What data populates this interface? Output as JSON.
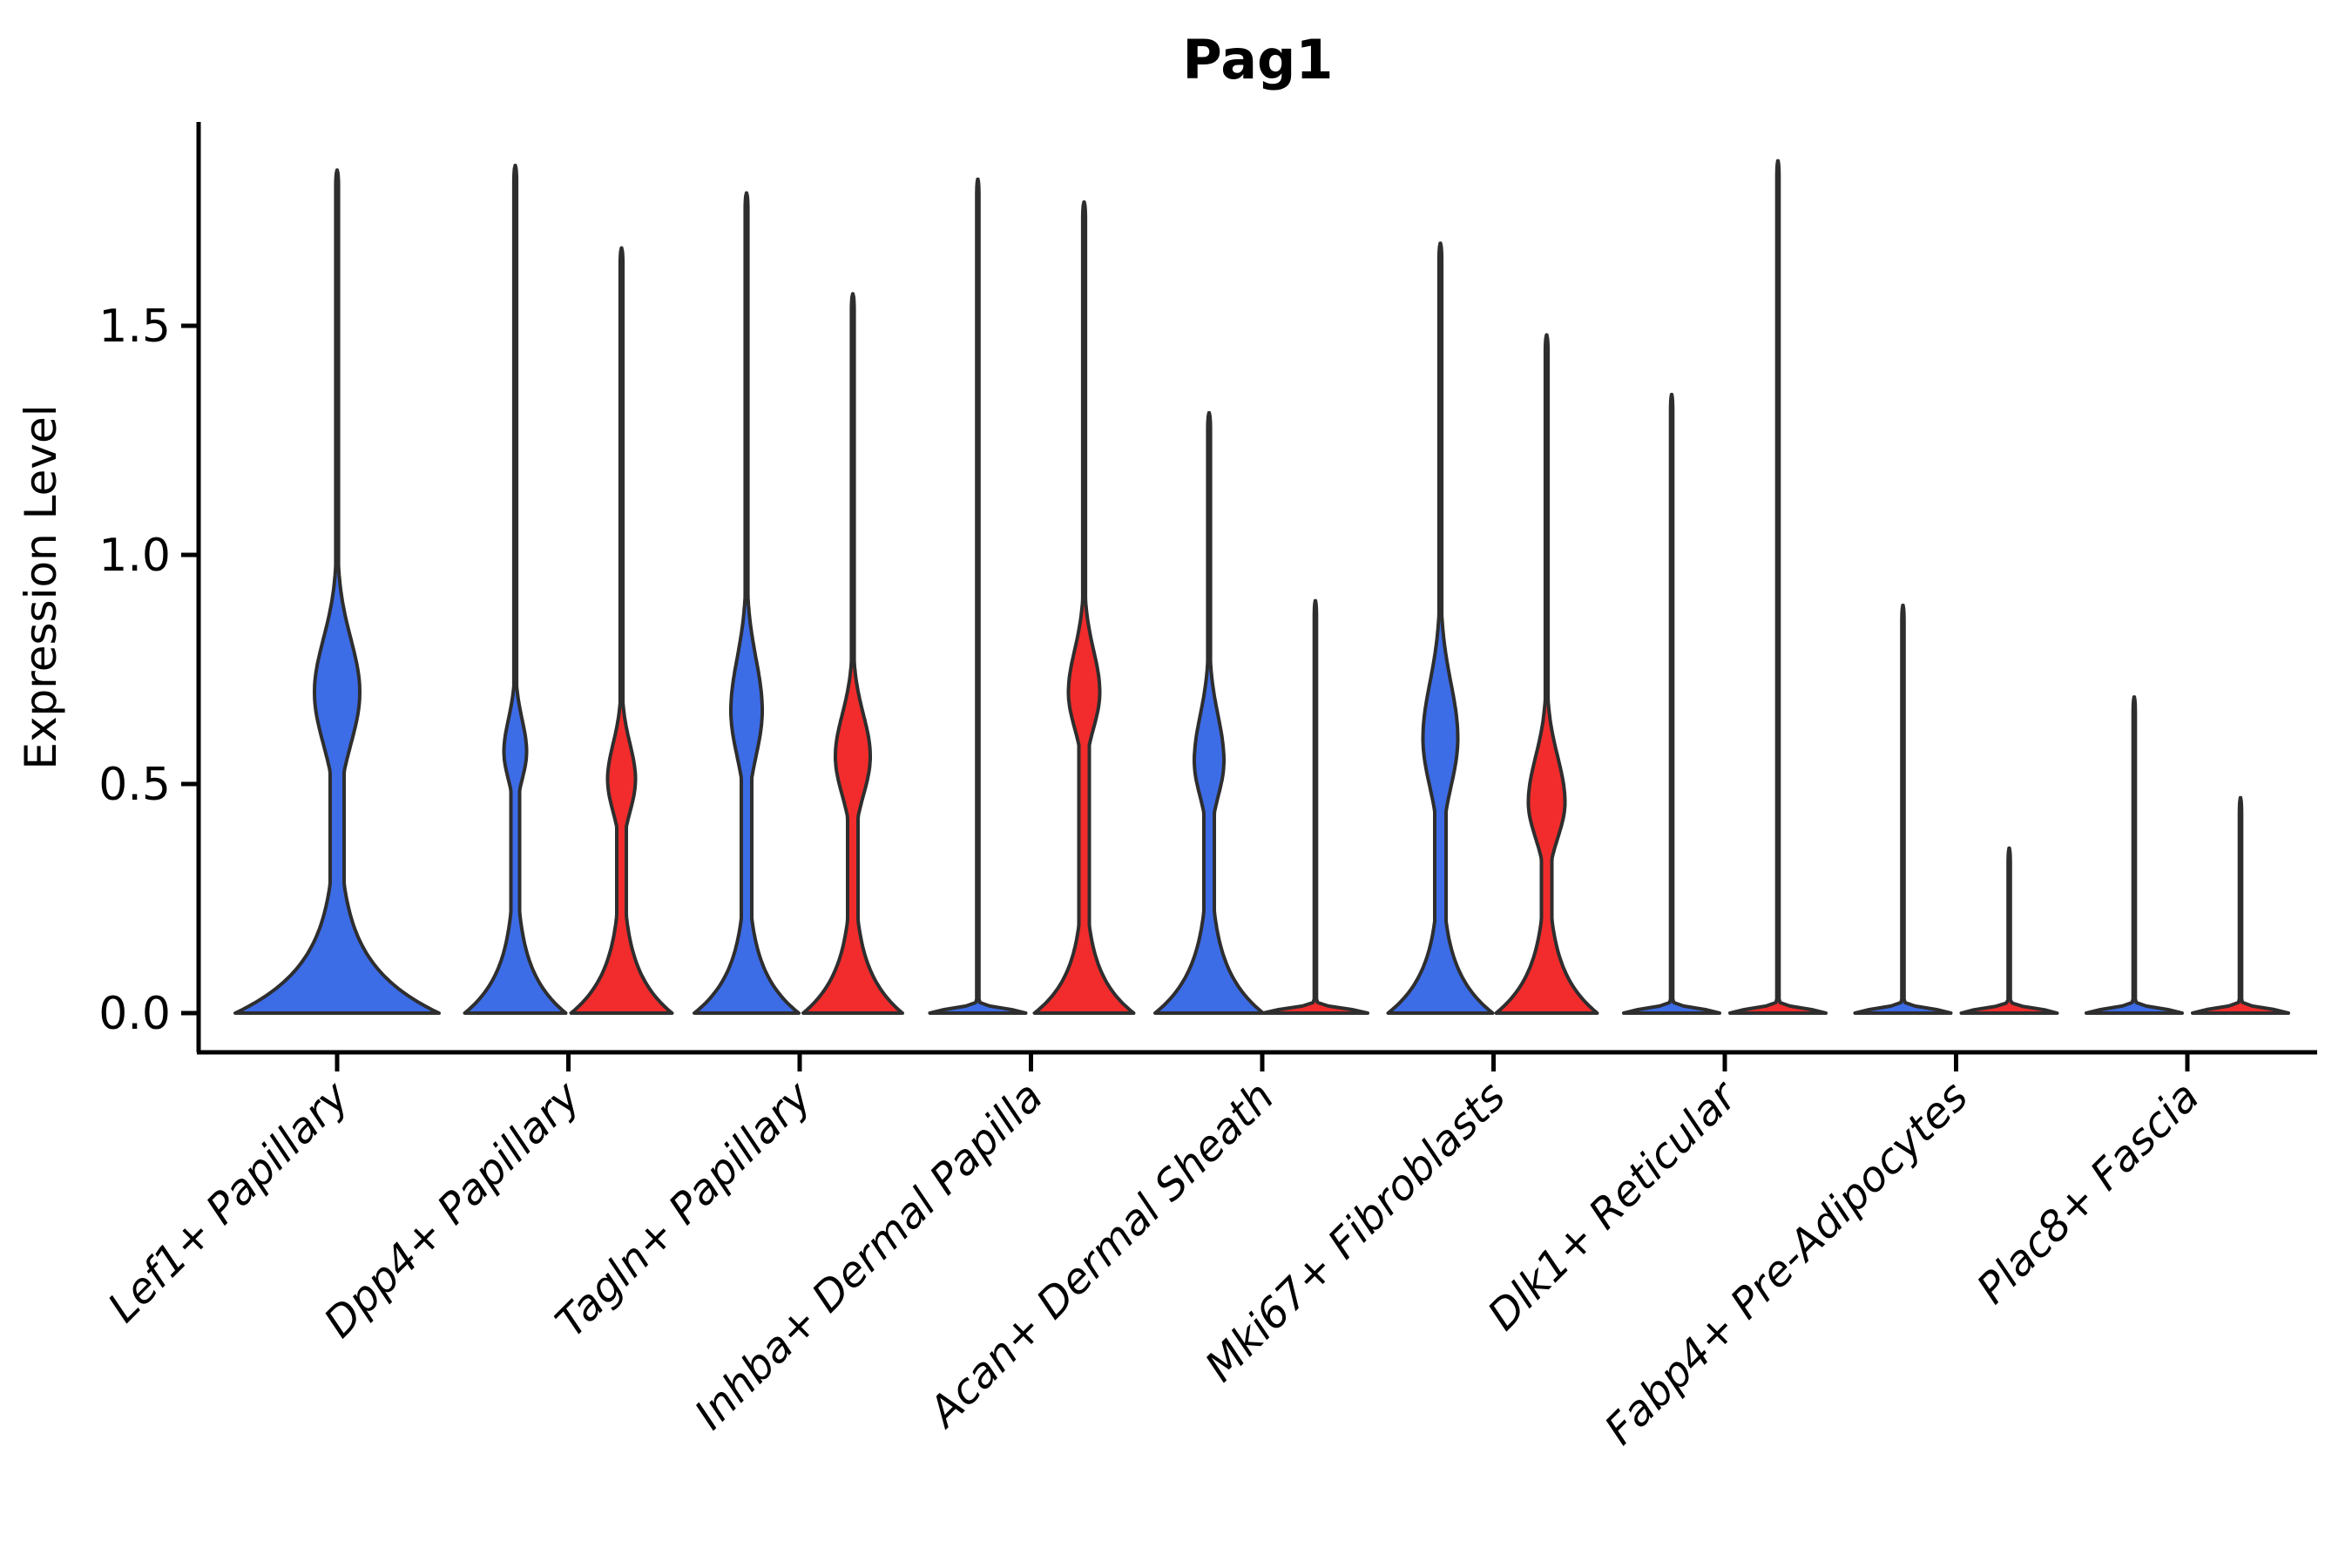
{
  "title": "Pag1",
  "y_axis": {
    "label": "Expression Level",
    "tick_labels": [
      "0.0",
      "0.5",
      "1.0",
      "1.5"
    ]
  },
  "colors": {
    "blue": "#3D6CE7",
    "red": "#F22C2C",
    "outline": "#2E2E2E",
    "axis": "#000000"
  },
  "chart_data": {
    "type": "violin",
    "title": "Pag1",
    "xlabel": "",
    "ylabel": "Expression Level",
    "ylim": [
      -0.09,
      1.95
    ],
    "yticks": [
      0.0,
      0.5,
      1.0,
      1.5
    ],
    "grid": false,
    "legend": "none",
    "split_colors": [
      "#3D6CE7",
      "#F22C2C"
    ],
    "categories": [
      "Lef1+ Papillary",
      "Dpp4+ Papillary",
      "Tagln+ Papillary",
      "Inhba+ Dermal Papilla",
      "Acan+ Dermal Sheath",
      "Mki67+ Fibroblasts",
      "Dlk1+ Reticular",
      "Fabp4+ Pre-Adipocytes",
      "Plac8+ Fascia"
    ],
    "groups": [
      {
        "category": "Lef1+ Papillary",
        "violins": [
          {
            "color": "blue",
            "position": "center",
            "shape": "body",
            "max_expression": 1.84,
            "base_halfwidth": 117,
            "base_sigma": 0.105,
            "neck_halfwidth": 8,
            "bulge": {
              "center": 0.7,
              "sigma_low": 0.16,
              "sigma_high": 0.165,
              "halfwidth": 26
            }
          }
        ]
      },
      {
        "category": "Dpp4+ Papillary",
        "violins": [
          {
            "color": "blue",
            "position": "left",
            "shape": "body",
            "max_expression": 1.85,
            "base_halfwidth": 58,
            "base_sigma": 0.09,
            "neck_halfwidth": 5,
            "bulge": {
              "center": 0.57,
              "sigma_low": 0.085,
              "sigma_high": 0.1,
              "halfwidth": 13
            }
          },
          {
            "color": "red",
            "position": "right",
            "shape": "body",
            "max_expression": 1.67,
            "base_halfwidth": 58,
            "base_sigma": 0.09,
            "neck_halfwidth": 5.5,
            "bulge": {
              "center": 0.51,
              "sigma_low": 0.1,
              "sigma_high": 0.11,
              "halfwidth": 16
            }
          }
        ]
      },
      {
        "category": "Tagln+ Papillary",
        "violins": [
          {
            "color": "blue",
            "position": "left",
            "shape": "body",
            "max_expression": 1.79,
            "base_halfwidth": 60,
            "base_sigma": 0.09,
            "neck_halfwidth": 6,
            "bulge": {
              "center": 0.66,
              "sigma_low": 0.14,
              "sigma_high": 0.16,
              "halfwidth": 18
            }
          },
          {
            "color": "red",
            "position": "right",
            "shape": "body",
            "max_expression": 1.57,
            "base_halfwidth": 57,
            "base_sigma": 0.09,
            "neck_halfwidth": 6,
            "bulge": {
              "center": 0.56,
              "sigma_low": 0.12,
              "sigma_high": 0.13,
              "halfwidth": 20
            }
          }
        ]
      },
      {
        "category": "Inhba+ Dermal Papilla",
        "violins": [
          {
            "color": "blue",
            "position": "left",
            "shape": "line",
            "max_expression": 1.82,
            "base_halfwidth": 55
          },
          {
            "color": "red",
            "position": "right",
            "shape": "body",
            "max_expression": 1.77,
            "base_halfwidth": 57,
            "base_sigma": 0.085,
            "neck_halfwidth": 6,
            "bulge": {
              "center": 0.7,
              "sigma_low": 0.11,
              "sigma_high": 0.13,
              "halfwidth": 18
            }
          }
        ]
      },
      {
        "category": "Acan+ Dermal Sheath",
        "violins": [
          {
            "color": "blue",
            "position": "left",
            "shape": "body",
            "max_expression": 1.31,
            "base_halfwidth": 62,
            "base_sigma": 0.095,
            "neck_halfwidth": 6,
            "bulge": {
              "center": 0.55,
              "sigma_low": 0.11,
              "sigma_high": 0.14,
              "halfwidth": 17
            }
          },
          {
            "color": "red",
            "position": "right",
            "shape": "line",
            "max_expression": 0.9,
            "base_halfwidth": 60
          }
        ]
      },
      {
        "category": "Mki67+ Fibroblasts",
        "violins": [
          {
            "color": "blue",
            "position": "left",
            "shape": "body",
            "max_expression": 1.68,
            "base_halfwidth": 60,
            "base_sigma": 0.09,
            "neck_halfwidth": 6.5,
            "bulge": {
              "center": 0.6,
              "sigma_low": 0.15,
              "sigma_high": 0.17,
              "halfwidth": 20
            }
          },
          {
            "color": "red",
            "position": "right",
            "shape": "body",
            "max_expression": 1.48,
            "base_halfwidth": 58,
            "base_sigma": 0.09,
            "neck_halfwidth": 6,
            "bulge": {
              "center": 0.46,
              "sigma_low": 0.11,
              "sigma_high": 0.14,
              "halfwidth": 21
            }
          }
        ]
      },
      {
        "category": "Dlk1+ Reticular",
        "violins": [
          {
            "color": "blue",
            "position": "left",
            "shape": "line",
            "max_expression": 1.35,
            "base_halfwidth": 55
          },
          {
            "color": "red",
            "position": "right",
            "shape": "line",
            "max_expression": 1.86,
            "base_halfwidth": 55
          }
        ]
      },
      {
        "category": "Fabp4+ Pre-Adipocytes",
        "violins": [
          {
            "color": "blue",
            "position": "left",
            "shape": "line",
            "max_expression": 0.89,
            "base_halfwidth": 55
          },
          {
            "color": "red",
            "position": "right",
            "shape": "line",
            "max_expression": 0.36,
            "base_halfwidth": 55
          }
        ]
      },
      {
        "category": "Plac8+ Fascia",
        "violins": [
          {
            "color": "blue",
            "position": "left",
            "shape": "line",
            "max_expression": 0.69,
            "base_halfwidth": 55
          },
          {
            "color": "red",
            "position": "right",
            "shape": "line",
            "max_expression": 0.47,
            "base_halfwidth": 55
          }
        ]
      }
    ]
  }
}
